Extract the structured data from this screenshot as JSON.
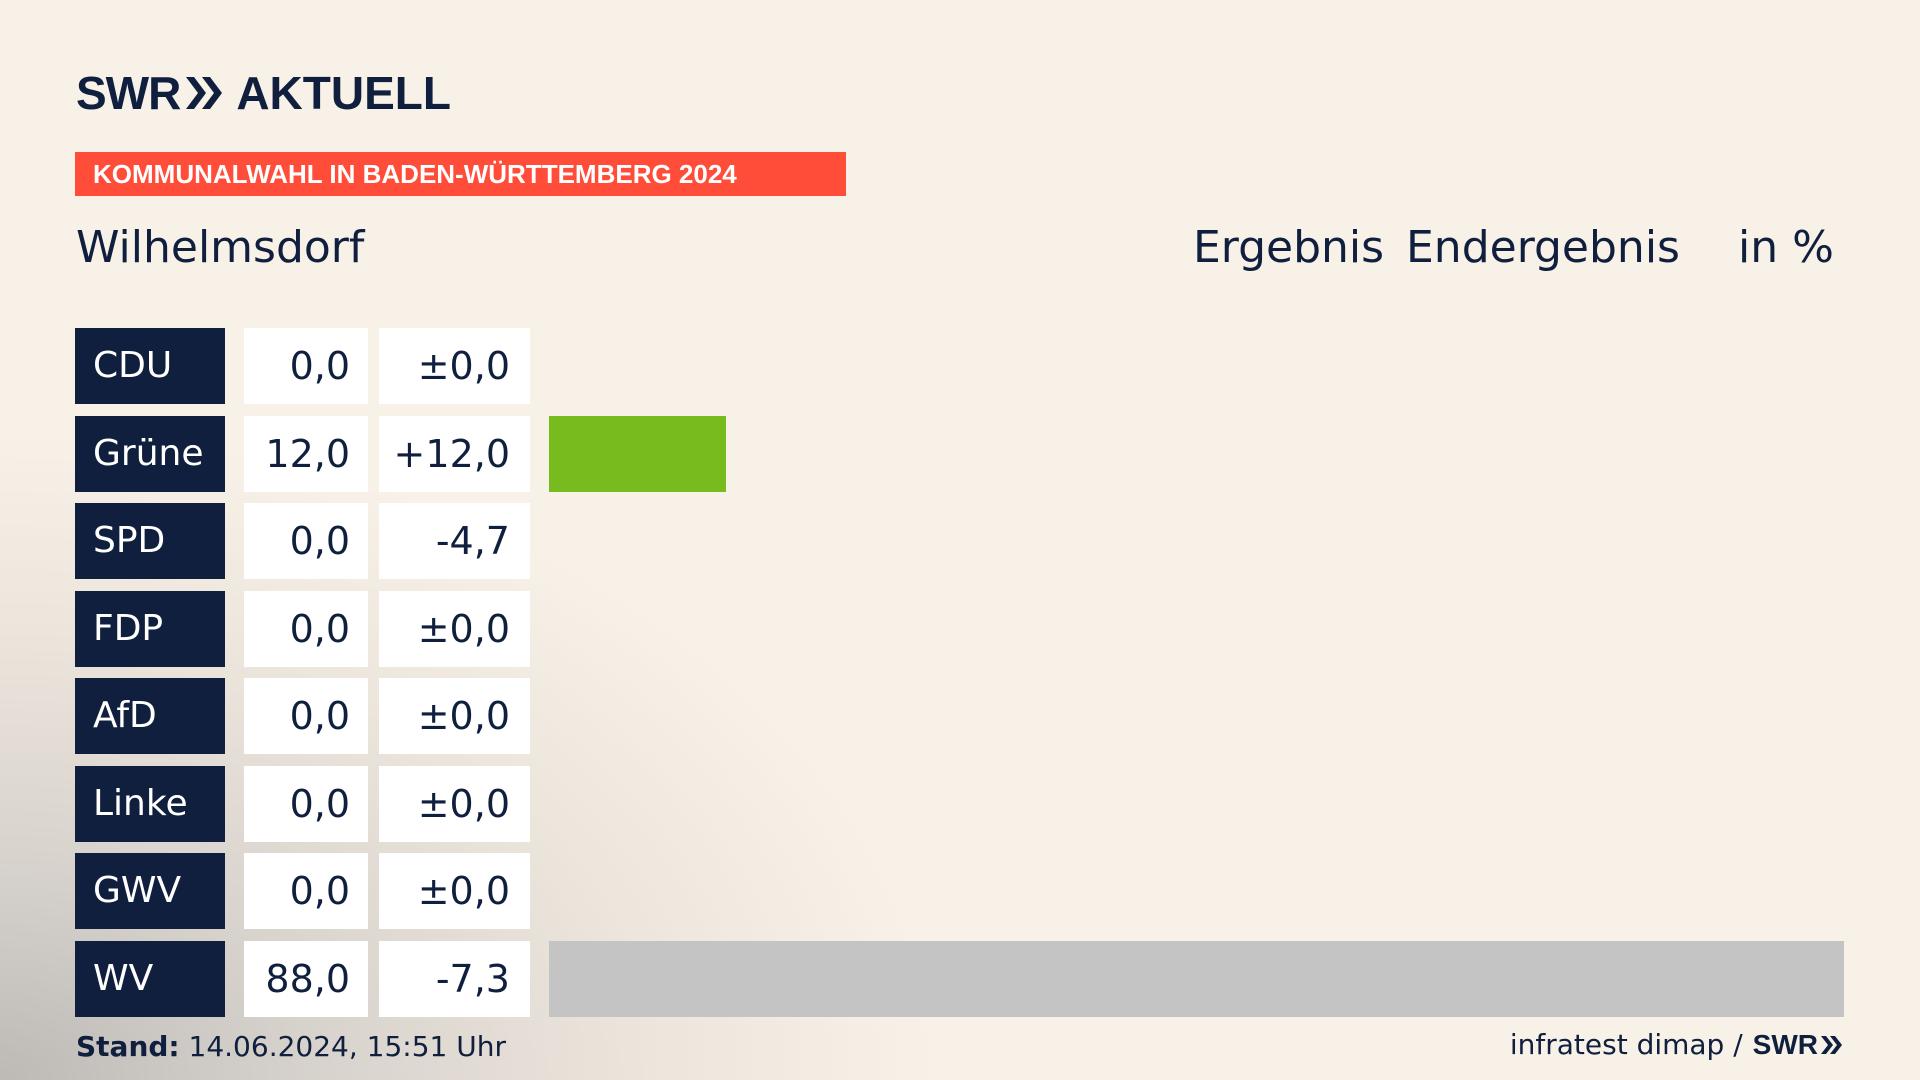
{
  "header": {
    "brand": "SWR",
    "brand_name": "AKTUELL",
    "banner": "KOMMUNALWAHL IN BADEN-WÜRTTEMBERG 2024",
    "place": "Wilhelmsdorf",
    "col_result": "Ergebnis",
    "col_status": "Endergebnis",
    "col_unit": "in %"
  },
  "chart_data": {
    "type": "bar",
    "orientation": "horizontal",
    "categories": [
      "CDU",
      "Grüne",
      "SPD",
      "FDP",
      "AfD",
      "Linke",
      "GWV",
      "WV"
    ],
    "values": [
      0.0,
      12.0,
      0.0,
      0.0,
      0.0,
      0.0,
      0.0,
      88.0
    ],
    "value_labels": [
      "0,0",
      "12,0",
      "0,0",
      "0,0",
      "0,0",
      "0,0",
      "0,0",
      "88,0"
    ],
    "diff_labels": [
      "±0,0",
      "+12,0",
      "-4,7",
      "±0,0",
      "±0,0",
      "±0,0",
      "±0,0",
      "-7,3"
    ],
    "colors": [
      "#000000",
      "#78bb1e",
      "#e2001a",
      "#ffed00",
      "#009ee0",
      "#be3075",
      "#c4c4c4",
      "#c4c4c4"
    ],
    "xlim": [
      0,
      88
    ]
  },
  "footer": {
    "stand_label": "Stand:",
    "stand_value": "14.06.2024, 15:51 Uhr",
    "source": "infratest dimap /",
    "source_brand": "SWR"
  }
}
